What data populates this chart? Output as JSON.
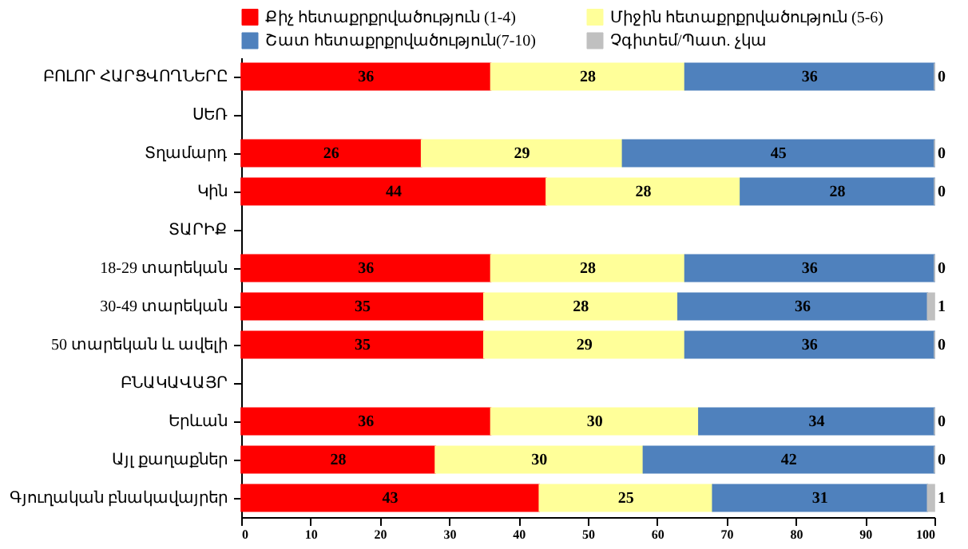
{
  "chart_data": {
    "type": "bar",
    "orientation": "horizontal",
    "stacked": true,
    "data_labels": true,
    "legend": "top",
    "grid": false,
    "categories": [
      "ԲՈԼՈՐ ՀԱՐՑՎՈՂՆԵՐԸ",
      "ՍԵՌ",
      "Տղամարդ",
      "Կին",
      "ՏԱՐԻՔ",
      "18-29 տարեկան",
      "30-49 տարեկան",
      "50 տարեկան և ավելի",
      "ԲՆԱԿԱՎԱՅՐ",
      "Երևան",
      "Այլ քաղաքներ",
      "Գյուղական բնակավայրեր"
    ],
    "series": [
      {
        "name": "Քիչ հետաքրքրվածություն (1-4)",
        "color": "#ff0000",
        "values": [
          36,
          null,
          26,
          44,
          null,
          36,
          35,
          35,
          null,
          36,
          28,
          43
        ]
      },
      {
        "name": "Միջին հետաքրքրվածություն (5-6)",
        "color": "#ffff99",
        "values": [
          28,
          null,
          29,
          28,
          null,
          28,
          28,
          29,
          null,
          30,
          30,
          25
        ]
      },
      {
        "name": "Շատ հետաքրքրվածություն(7-10)",
        "color": "#4f81bd",
        "values": [
          36,
          null,
          45,
          28,
          null,
          36,
          36,
          36,
          null,
          34,
          42,
          31
        ]
      },
      {
        "name": "Չգիտեմ/Պատ. չկա",
        "color": "#c0c0c0",
        "values": [
          0,
          null,
          0,
          0,
          null,
          0,
          1,
          0,
          null,
          0,
          0,
          1
        ]
      }
    ],
    "xlim": [
      0,
      100
    ],
    "xticks": [
      0,
      10,
      20,
      30,
      40,
      50,
      60,
      70,
      80,
      90,
      100
    ]
  }
}
